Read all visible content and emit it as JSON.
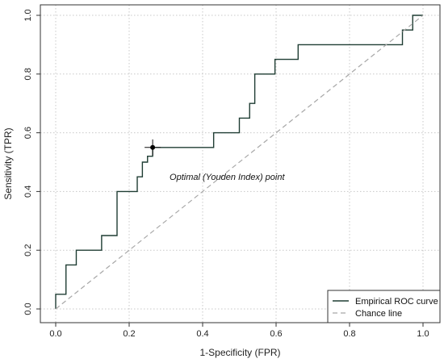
{
  "chart_data": {
    "type": "line",
    "title": "",
    "xlabel": "1-Specificity (FPR)",
    "ylabel": "Sensitivity (TPR)",
    "xlim": [
      0,
      1
    ],
    "ylim": [
      0,
      1
    ],
    "x_ticks": [
      "0.0",
      "0.2",
      "0.4",
      "0.6",
      "0.8",
      "1.0"
    ],
    "y_ticks": [
      "0.0",
      "0.2",
      "0.4",
      "0.6",
      "0.8",
      "1.0"
    ],
    "grid": true,
    "legend_position": "bottom-right",
    "colors": {
      "roc": "#1f3d33",
      "chance": "#a8a8a8",
      "grid": "#c8c8c8",
      "frame": "#333333"
    },
    "series": [
      {
        "name": "Empirical ROC curve",
        "style": "solid",
        "x": [
          0.0,
          0.0,
          0.0,
          0.028,
          0.028,
          0.056,
          0.056,
          0.125,
          0.125,
          0.167,
          0.167,
          0.222,
          0.222,
          0.236,
          0.236,
          0.25,
          0.25,
          0.264,
          0.264,
          0.43,
          0.43,
          0.5,
          0.5,
          0.528,
          0.528,
          0.542,
          0.542,
          0.597,
          0.597,
          0.66,
          0.66,
          0.944,
          0.944,
          0.972,
          0.972,
          1.0
        ],
        "y": [
          0.0,
          0.0,
          0.05,
          0.05,
          0.15,
          0.15,
          0.2,
          0.2,
          0.25,
          0.25,
          0.4,
          0.4,
          0.45,
          0.45,
          0.5,
          0.5,
          0.52,
          0.52,
          0.55,
          0.55,
          0.6,
          0.6,
          0.65,
          0.65,
          0.7,
          0.7,
          0.8,
          0.8,
          0.85,
          0.85,
          0.9,
          0.9,
          0.95,
          0.95,
          1.0,
          1.0
        ]
      },
      {
        "name": "Chance line",
        "style": "dashed",
        "x": [
          0,
          1
        ],
        "y": [
          0,
          1
        ]
      }
    ],
    "optimal_point": {
      "x": 0.264,
      "y": 0.55
    },
    "annotations": [
      {
        "text": "Optimal (Youden Index) point",
        "x": 0.31,
        "y": 0.44
      }
    ]
  }
}
